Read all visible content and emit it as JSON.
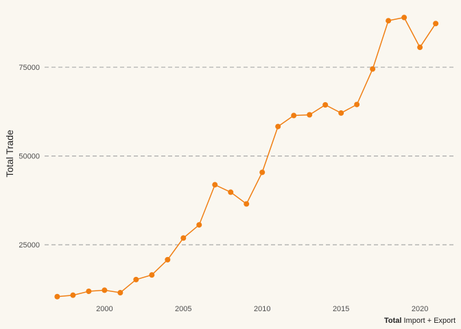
{
  "chart_data": {
    "type": "line",
    "ylabel": "Total Trade",
    "caption_bold": "Total",
    "caption_rest": " Import + Export",
    "x_ticks": [
      2000,
      2005,
      2010,
      2015,
      2020
    ],
    "y_ticks": [
      25000,
      50000,
      75000
    ],
    "y_tick_labels": [
      "25000",
      "50000",
      "75000"
    ],
    "xlim": [
      1996.2,
      2022.3
    ],
    "ylim": [
      9000,
      92000
    ],
    "grid": "horizontal dashed",
    "color": "#f07e12",
    "series": [
      {
        "x": [
          1997,
          1998,
          1999,
          2000,
          2001,
          2002,
          2003,
          2004,
          2005,
          2006,
          2007,
          2008,
          2009,
          2010,
          2011,
          2012,
          2013,
          2014,
          2015,
          2016,
          2017,
          2018,
          2019,
          2020,
          2021
        ],
        "y": [
          10400,
          10800,
          11900,
          12200,
          11500,
          15200,
          16500,
          20800,
          26900,
          30600,
          41900,
          39800,
          36500,
          45400,
          58300,
          61400,
          61600,
          64400,
          62100,
          64500,
          74500,
          88100,
          89000,
          80600,
          87300
        ]
      }
    ]
  }
}
